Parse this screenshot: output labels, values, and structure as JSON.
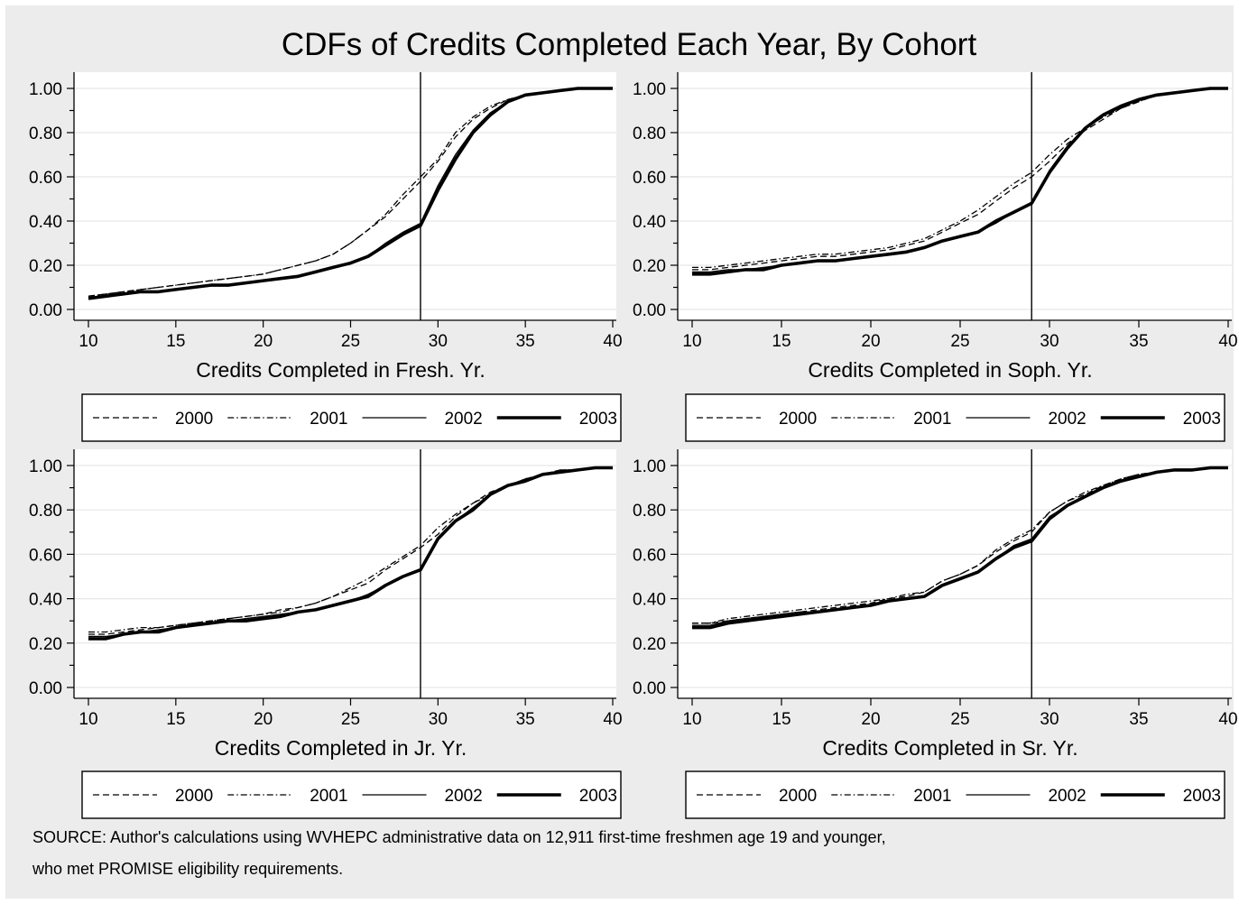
{
  "title": "CDFs of Credits Completed Each Year, By Cohort",
  "source": {
    "line1": "SOURCE: Author's calculations using WVHEPC administrative data on 12,911 first-time freshmen age 19 and younger,",
    "line2": "who met PROMISE eligibility requirements."
  },
  "series_styles": [
    {
      "name": "2000",
      "style": "dashed",
      "color": "#000000"
    },
    {
      "name": "2001",
      "style": "dash-dot",
      "color": "#000000"
    },
    {
      "name": "2002",
      "style": "thin",
      "color": "#000000"
    },
    {
      "name": "2003",
      "style": "thick",
      "color": "#000000"
    }
  ],
  "chart_data": [
    {
      "type": "line",
      "xlabel": "Credits Completed in Fresh. Yr.",
      "ylabel": "",
      "xlim": [
        10,
        40
      ],
      "ylim": [
        0,
        1
      ],
      "xticks": [
        "10",
        "15",
        "20",
        "25",
        "30",
        "35",
        "40"
      ],
      "yticks": [
        "0.00",
        "0.20",
        "0.40",
        "0.60",
        "0.80",
        "1.00"
      ],
      "reference_line_x": 29,
      "grid": true,
      "legend": "bottom",
      "x": [
        10,
        11,
        12,
        13,
        14,
        15,
        16,
        17,
        18,
        19,
        20,
        21,
        22,
        23,
        24,
        25,
        26,
        27,
        28,
        29,
        30,
        31,
        32,
        33,
        34,
        35,
        36,
        37,
        38,
        39,
        40
      ],
      "series": [
        {
          "name": "2000",
          "values": [
            0.06,
            0.07,
            0.08,
            0.09,
            0.1,
            0.11,
            0.12,
            0.13,
            0.14,
            0.15,
            0.16,
            0.18,
            0.2,
            0.22,
            0.25,
            0.3,
            0.36,
            0.42,
            0.5,
            0.58,
            0.67,
            0.78,
            0.86,
            0.91,
            0.95,
            0.97,
            0.98,
            0.99,
            1.0,
            1.0,
            1.0
          ]
        },
        {
          "name": "2001",
          "values": [
            0.06,
            0.07,
            0.08,
            0.09,
            0.1,
            0.11,
            0.12,
            0.13,
            0.14,
            0.15,
            0.16,
            0.18,
            0.2,
            0.22,
            0.25,
            0.3,
            0.36,
            0.43,
            0.52,
            0.6,
            0.68,
            0.8,
            0.87,
            0.92,
            0.95,
            0.97,
            0.98,
            0.99,
            1.0,
            1.0,
            1.0
          ]
        },
        {
          "name": "2002",
          "values": [
            0.05,
            0.06,
            0.07,
            0.08,
            0.08,
            0.09,
            0.1,
            0.11,
            0.11,
            0.12,
            0.13,
            0.14,
            0.15,
            0.17,
            0.19,
            0.21,
            0.24,
            0.3,
            0.35,
            0.39,
            0.56,
            0.7,
            0.81,
            0.89,
            0.94,
            0.97,
            0.98,
            0.99,
            1.0,
            1.0,
            1.0
          ]
        },
        {
          "name": "2003",
          "values": [
            0.05,
            0.06,
            0.07,
            0.08,
            0.08,
            0.09,
            0.1,
            0.11,
            0.11,
            0.12,
            0.13,
            0.14,
            0.15,
            0.17,
            0.19,
            0.21,
            0.24,
            0.29,
            0.34,
            0.38,
            0.54,
            0.68,
            0.8,
            0.88,
            0.94,
            0.97,
            0.98,
            0.99,
            1.0,
            1.0,
            1.0
          ]
        }
      ]
    },
    {
      "type": "line",
      "xlabel": "Credits Completed in Soph. Yr.",
      "ylabel": "",
      "xlim": [
        10,
        40
      ],
      "ylim": [
        0,
        1
      ],
      "xticks": [
        "10",
        "15",
        "20",
        "25",
        "30",
        "35",
        "40"
      ],
      "yticks": [
        "0.00",
        "0.20",
        "0.40",
        "0.60",
        "0.80",
        "1.00"
      ],
      "reference_line_x": 29,
      "grid": true,
      "legend": "bottom",
      "x": [
        10,
        11,
        12,
        13,
        14,
        15,
        16,
        17,
        18,
        19,
        20,
        21,
        22,
        23,
        24,
        25,
        26,
        27,
        28,
        29,
        30,
        31,
        32,
        33,
        34,
        35,
        36,
        37,
        38,
        39,
        40
      ],
      "series": [
        {
          "name": "2000",
          "values": [
            0.18,
            0.18,
            0.19,
            0.2,
            0.21,
            0.22,
            0.23,
            0.24,
            0.24,
            0.25,
            0.26,
            0.27,
            0.29,
            0.31,
            0.35,
            0.39,
            0.43,
            0.49,
            0.55,
            0.6,
            0.67,
            0.75,
            0.81,
            0.86,
            0.91,
            0.94,
            0.97,
            0.98,
            0.99,
            1.0,
            1.0
          ]
        },
        {
          "name": "2001",
          "values": [
            0.19,
            0.19,
            0.2,
            0.21,
            0.22,
            0.23,
            0.24,
            0.25,
            0.25,
            0.26,
            0.27,
            0.28,
            0.3,
            0.32,
            0.36,
            0.4,
            0.45,
            0.51,
            0.57,
            0.62,
            0.7,
            0.77,
            0.82,
            0.87,
            0.91,
            0.94,
            0.97,
            0.98,
            0.99,
            1.0,
            1.0
          ]
        },
        {
          "name": "2002",
          "values": [
            0.17,
            0.17,
            0.18,
            0.18,
            0.19,
            0.2,
            0.21,
            0.22,
            0.22,
            0.23,
            0.24,
            0.25,
            0.26,
            0.28,
            0.31,
            0.33,
            0.35,
            0.39,
            0.44,
            0.48,
            0.63,
            0.74,
            0.82,
            0.88,
            0.92,
            0.95,
            0.97,
            0.98,
            0.99,
            1.0,
            1.0
          ]
        },
        {
          "name": "2003",
          "values": [
            0.16,
            0.16,
            0.17,
            0.18,
            0.18,
            0.2,
            0.21,
            0.22,
            0.22,
            0.23,
            0.24,
            0.25,
            0.26,
            0.28,
            0.31,
            0.33,
            0.35,
            0.4,
            0.44,
            0.48,
            0.62,
            0.73,
            0.82,
            0.88,
            0.92,
            0.95,
            0.97,
            0.98,
            0.99,
            1.0,
            1.0
          ]
        }
      ]
    },
    {
      "type": "line",
      "xlabel": "Credits Completed in Jr. Yr.",
      "ylabel": "",
      "xlim": [
        10,
        40
      ],
      "ylim": [
        0,
        1
      ],
      "xticks": [
        "10",
        "15",
        "20",
        "25",
        "30",
        "35",
        "40"
      ],
      "yticks": [
        "0.00",
        "0.20",
        "0.40",
        "0.60",
        "0.80",
        "1.00"
      ],
      "reference_line_x": 29,
      "grid": true,
      "legend": "bottom",
      "x": [
        10,
        11,
        12,
        13,
        14,
        15,
        16,
        17,
        18,
        19,
        20,
        21,
        22,
        23,
        24,
        25,
        26,
        27,
        28,
        29,
        30,
        31,
        32,
        33,
        34,
        35,
        36,
        37,
        38,
        39,
        40
      ],
      "series": [
        {
          "name": "2000",
          "values": [
            0.24,
            0.24,
            0.25,
            0.26,
            0.27,
            0.28,
            0.29,
            0.3,
            0.31,
            0.32,
            0.33,
            0.35,
            0.36,
            0.38,
            0.41,
            0.44,
            0.47,
            0.53,
            0.58,
            0.63,
            0.69,
            0.77,
            0.83,
            0.88,
            0.91,
            0.94,
            0.96,
            0.98,
            0.98,
            0.99,
            0.99
          ]
        },
        {
          "name": "2001",
          "values": [
            0.25,
            0.25,
            0.26,
            0.27,
            0.27,
            0.28,
            0.29,
            0.3,
            0.31,
            0.32,
            0.33,
            0.34,
            0.36,
            0.38,
            0.41,
            0.45,
            0.49,
            0.54,
            0.59,
            0.64,
            0.72,
            0.78,
            0.83,
            0.87,
            0.91,
            0.94,
            0.96,
            0.98,
            0.98,
            0.99,
            0.99
          ]
        },
        {
          "name": "2002",
          "values": [
            0.23,
            0.23,
            0.24,
            0.25,
            0.26,
            0.27,
            0.28,
            0.29,
            0.3,
            0.31,
            0.32,
            0.33,
            0.34,
            0.35,
            0.37,
            0.39,
            0.42,
            0.46,
            0.5,
            0.53,
            0.67,
            0.75,
            0.81,
            0.87,
            0.91,
            0.93,
            0.96,
            0.97,
            0.98,
            0.99,
            0.99
          ]
        },
        {
          "name": "2003",
          "values": [
            0.22,
            0.22,
            0.24,
            0.25,
            0.25,
            0.27,
            0.28,
            0.29,
            0.3,
            0.3,
            0.31,
            0.32,
            0.34,
            0.35,
            0.37,
            0.39,
            0.41,
            0.46,
            0.5,
            0.53,
            0.67,
            0.75,
            0.8,
            0.87,
            0.91,
            0.93,
            0.96,
            0.97,
            0.98,
            0.99,
            0.99
          ]
        }
      ]
    },
    {
      "type": "line",
      "xlabel": "Credits Completed in Sr. Yr.",
      "ylabel": "",
      "xlim": [
        10,
        40
      ],
      "ylim": [
        0,
        1
      ],
      "xticks": [
        "10",
        "15",
        "20",
        "25",
        "30",
        "35",
        "40"
      ],
      "yticks": [
        "0.00",
        "0.20",
        "0.40",
        "0.60",
        "0.80",
        "1.00"
      ],
      "reference_line_x": 29,
      "grid": true,
      "legend": "bottom",
      "x": [
        10,
        11,
        12,
        13,
        14,
        15,
        16,
        17,
        18,
        19,
        20,
        21,
        22,
        23,
        24,
        25,
        26,
        27,
        28,
        29,
        30,
        31,
        32,
        33,
        34,
        35,
        36,
        37,
        38,
        39,
        40
      ],
      "series": [
        {
          "name": "2000",
          "values": [
            0.29,
            0.29,
            0.3,
            0.31,
            0.32,
            0.33,
            0.34,
            0.35,
            0.36,
            0.37,
            0.38,
            0.4,
            0.41,
            0.43,
            0.48,
            0.51,
            0.55,
            0.61,
            0.66,
            0.7,
            0.79,
            0.84,
            0.87,
            0.91,
            0.94,
            0.96,
            0.97,
            0.98,
            0.98,
            0.99,
            0.99
          ]
        },
        {
          "name": "2001",
          "values": [
            0.29,
            0.29,
            0.31,
            0.32,
            0.33,
            0.34,
            0.35,
            0.36,
            0.37,
            0.38,
            0.39,
            0.4,
            0.42,
            0.43,
            0.48,
            0.51,
            0.55,
            0.62,
            0.67,
            0.71,
            0.79,
            0.84,
            0.88,
            0.91,
            0.94,
            0.96,
            0.97,
            0.98,
            0.98,
            0.99,
            0.99
          ]
        },
        {
          "name": "2002",
          "values": [
            0.28,
            0.28,
            0.3,
            0.31,
            0.32,
            0.33,
            0.34,
            0.34,
            0.35,
            0.36,
            0.37,
            0.39,
            0.4,
            0.41,
            0.46,
            0.49,
            0.52,
            0.58,
            0.64,
            0.67,
            0.77,
            0.82,
            0.86,
            0.9,
            0.93,
            0.95,
            0.97,
            0.98,
            0.98,
            0.99,
            0.99
          ]
        },
        {
          "name": "2003",
          "values": [
            0.27,
            0.27,
            0.29,
            0.3,
            0.31,
            0.32,
            0.33,
            0.34,
            0.35,
            0.36,
            0.37,
            0.39,
            0.4,
            0.41,
            0.46,
            0.49,
            0.52,
            0.58,
            0.63,
            0.66,
            0.76,
            0.82,
            0.86,
            0.9,
            0.93,
            0.95,
            0.97,
            0.98,
            0.98,
            0.99,
            0.99
          ]
        }
      ]
    }
  ]
}
